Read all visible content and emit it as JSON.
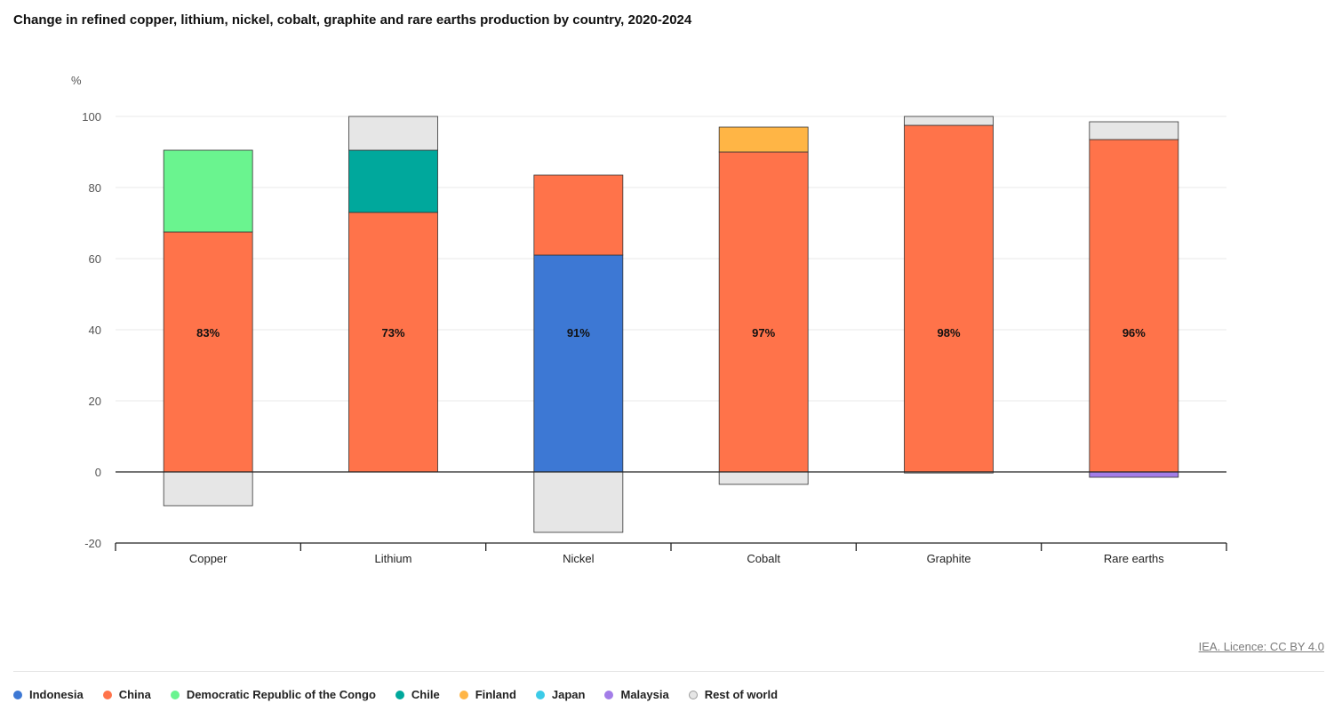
{
  "title": "Change in refined copper, lithium, nickel, cobalt, graphite and rare earths production by country, 2020-2024",
  "source": "IEA. Licence: CC BY 4.0",
  "colors": {
    "Indonesia": "#3d78d4",
    "China": "#ff734a",
    "Democratic Republic of the Congo": "#6af48f",
    "Chile": "#00a89c",
    "Finland": "#ffb545",
    "Japan": "#3ccbe8",
    "Malaysia": "#a37de8",
    "Rest of world": "#e6e6e6"
  },
  "legend": [
    {
      "label": "Indonesia",
      "color": "#3d78d4"
    },
    {
      "label": "China",
      "color": "#ff734a"
    },
    {
      "label": "Democratic Republic of the Congo",
      "color": "#6af48f"
    },
    {
      "label": "Chile",
      "color": "#00a89c"
    },
    {
      "label": "Finland",
      "color": "#ffb545"
    },
    {
      "label": "Japan",
      "color": "#3ccbe8"
    },
    {
      "label": "Malaysia",
      "color": "#a37de8"
    },
    {
      "label": "Rest of world",
      "color": "#e6e6e6"
    }
  ],
  "chart_data": {
    "type": "bar",
    "stacked": true,
    "title": "Change in refined copper, lithium, nickel, cobalt, graphite and rare earths production by country, 2020-2024",
    "ylabel": "%",
    "xlabel": "",
    "ylim": [
      -20,
      100
    ],
    "yticks": [
      100,
      80,
      60,
      40,
      20,
      0,
      -20
    ],
    "grid": true,
    "legend_position": "bottom",
    "categories": [
      "Copper",
      "Lithium",
      "Nickel",
      "Cobalt",
      "Graphite",
      "Rare earths"
    ],
    "bar_labels": [
      "83%",
      "73%",
      "91%",
      "97%",
      "98%",
      "96%"
    ],
    "stacks": [
      {
        "category": "Copper",
        "segments": [
          {
            "name": "China",
            "value": 67.5
          },
          {
            "name": "Democratic Republic of the Congo",
            "value": 23
          },
          {
            "name": "Rest of world",
            "value": -9.5
          }
        ]
      },
      {
        "category": "Lithium",
        "segments": [
          {
            "name": "China",
            "value": 73
          },
          {
            "name": "Chile",
            "value": 17.5
          },
          {
            "name": "Rest of world",
            "value": 9.5
          }
        ]
      },
      {
        "category": "Nickel",
        "segments": [
          {
            "name": "Indonesia",
            "value": 61
          },
          {
            "name": "China",
            "value": 22.5
          },
          {
            "name": "Rest of world",
            "value": -17
          }
        ]
      },
      {
        "category": "Cobalt",
        "segments": [
          {
            "name": "China",
            "value": 90
          },
          {
            "name": "Finland",
            "value": 7
          },
          {
            "name": "Rest of world",
            "value": -3.5
          }
        ]
      },
      {
        "category": "Graphite",
        "segments": [
          {
            "name": "China",
            "value": 97.5
          },
          {
            "name": "Rest of world",
            "value": 2.5
          },
          {
            "name": "Rest of world",
            "value": -0.3
          }
        ]
      },
      {
        "category": "Rare earths",
        "segments": [
          {
            "name": "China",
            "value": 93.5
          },
          {
            "name": "Rest of world",
            "value": 5
          },
          {
            "name": "Malaysia",
            "value": -1.5
          }
        ]
      }
    ]
  }
}
